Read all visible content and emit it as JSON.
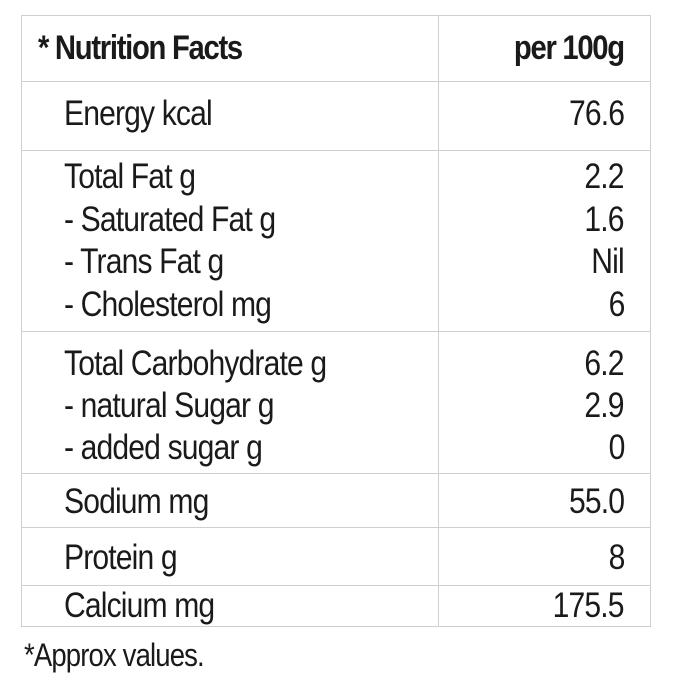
{
  "header": {
    "title": "* Nutrition Facts",
    "column": "per 100g"
  },
  "rows": [
    {
      "lines": [
        {
          "label": "Energy kcal",
          "value": "76.6"
        }
      ]
    },
    {
      "lines": [
        {
          "label": "Total Fat g",
          "value": "2.2"
        },
        {
          "label": "- Saturated Fat g",
          "value": "1.6"
        },
        {
          "label": "- Trans Fat g",
          "value": "Nil"
        },
        {
          "label": "- Cholesterol mg",
          "value": "6"
        }
      ]
    },
    {
      "lines": [
        {
          "label": "Total Carbohydrate  g",
          "value": "6.2"
        },
        {
          "label": "- natural Sugar g",
          "value": "2.9"
        },
        {
          "label": "- added sugar g",
          "value": "0"
        }
      ]
    },
    {
      "lines": [
        {
          "label": "Sodium mg",
          "value": "55.0"
        }
      ]
    },
    {
      "lines": [
        {
          "label": "Protein  g",
          "value": "8"
        }
      ]
    },
    {
      "lines": [
        {
          "label": "Calcium  mg",
          "value": "175.5"
        }
      ]
    }
  ],
  "footnote": "*Approx values."
}
